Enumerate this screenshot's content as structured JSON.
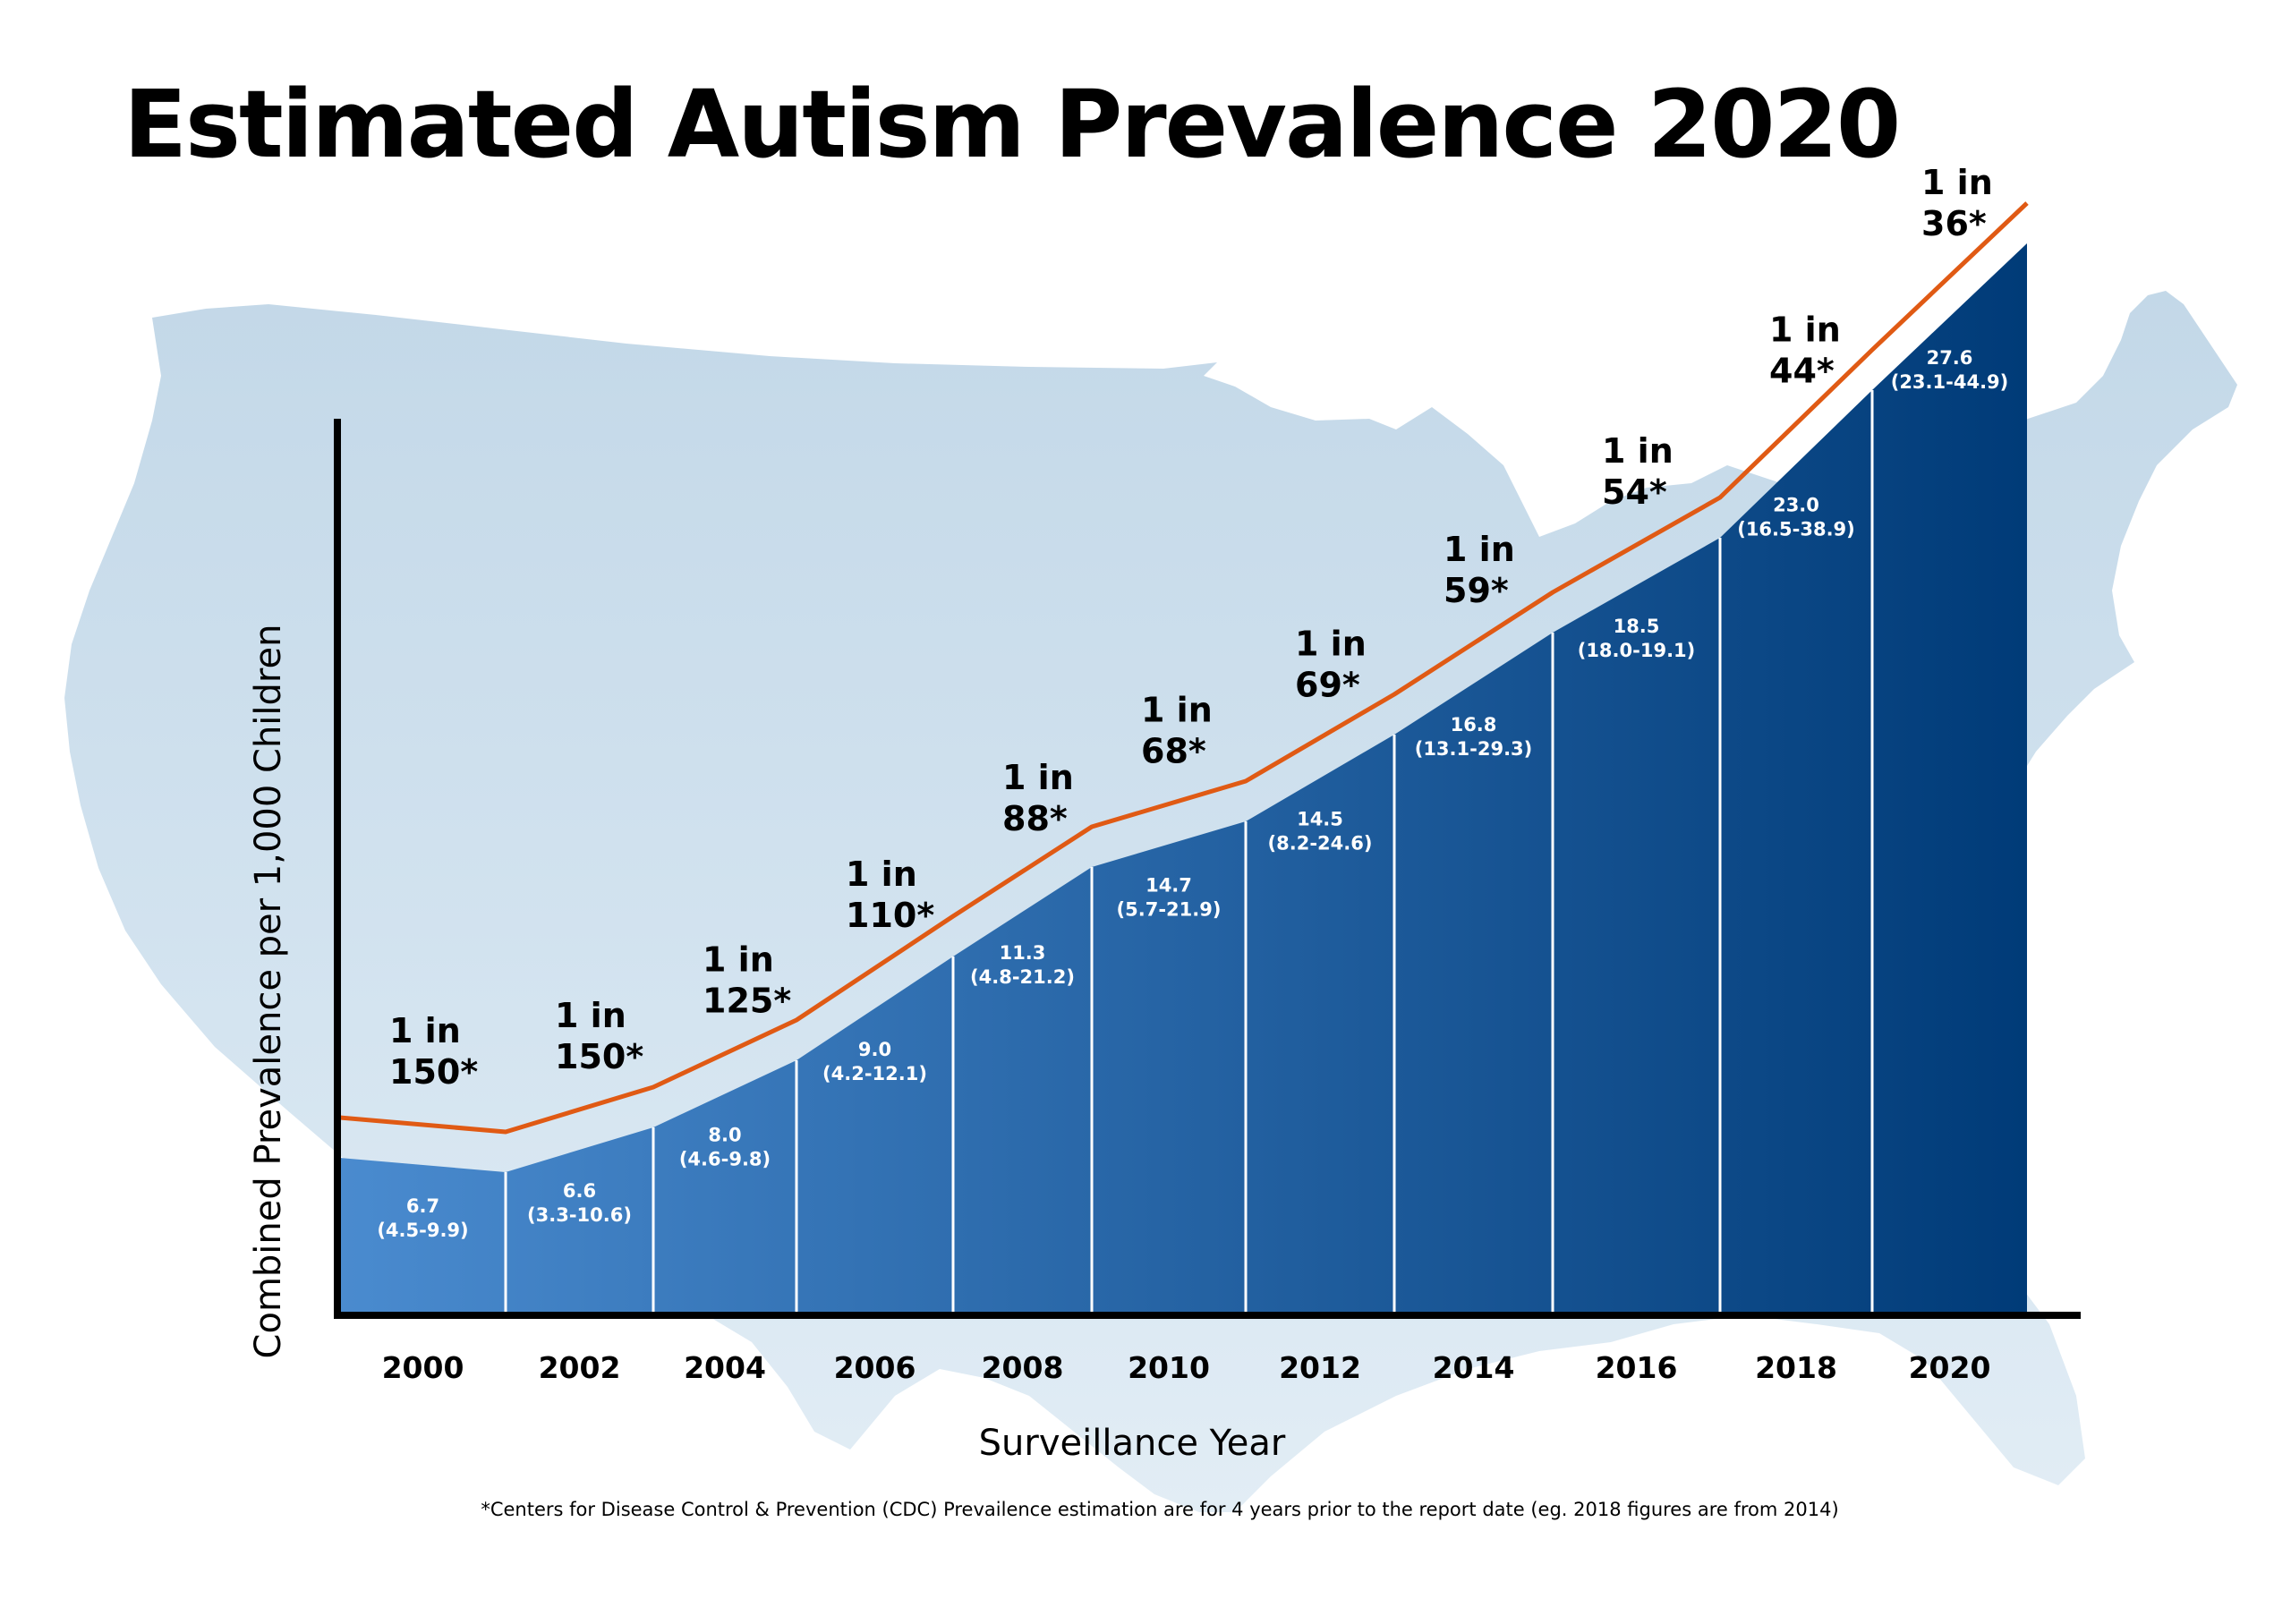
{
  "colors": {
    "map": "#c8dcea",
    "bar_left": "#4a8bcf",
    "bar_right": "#003b78",
    "line": "#e05a14",
    "axis": "#000000",
    "text": "#000000",
    "bar_text": "#ffffff"
  },
  "footnote": "*Centers for Disease Control & Prevention (CDC) Prevailence estimation are for 4 years prior to the report date (eg. 2018 figures are from 2014)",
  "chart_data": {
    "type": "area",
    "title": "Estimated Autism Prevalence 2020",
    "xlabel": "Surveillance Year",
    "ylabel": "Combined Prevalence per 1,000 Children",
    "ylim": [
      0,
      34
    ],
    "grid": false,
    "legend": "none",
    "categories": [
      "2000",
      "2002",
      "2004",
      "2006",
      "2008",
      "2010",
      "2012",
      "2014",
      "2016",
      "2018",
      "2020"
    ],
    "series": [
      {
        "values": [
          6.7,
          6.6,
          8.0,
          9.0,
          11.3,
          14.7,
          14.5,
          16.8,
          18.5,
          23.0,
          27.6
        ],
        "value_labels": [
          "6.7",
          "6.6",
          "8.0",
          "9.0",
          "11.3",
          "14.7",
          "14.5",
          "16.8",
          "18.5",
          "23.0",
          "27.6"
        ],
        "ranges": [
          "(4.5-9.9)",
          "(3.3-10.6)",
          "(4.6-9.8)",
          "(4.2-12.1)",
          "(4.8-21.2)",
          "(5.7-21.9)",
          "(8.2-24.6)",
          "(13.1-29.3)",
          "(18.0-19.1)",
          "(16.5-38.9)",
          "(23.1-44.9)"
        ]
      },
      {
        "values": [
          150,
          150,
          125,
          110,
          88,
          68,
          69,
          59,
          54,
          44,
          36
        ],
        "labels_line1": [
          "1 in",
          "1 in",
          "1 in",
          "1 in",
          "1 in",
          "1 in",
          "1 in",
          "1 in",
          "1 in",
          "1 in",
          "1 in"
        ],
        "labels_line2": [
          "150*",
          "150*",
          "125*",
          "110*",
          "88*",
          "68*",
          "69*",
          "59*",
          "54*",
          "44*",
          "36*"
        ]
      }
    ]
  }
}
